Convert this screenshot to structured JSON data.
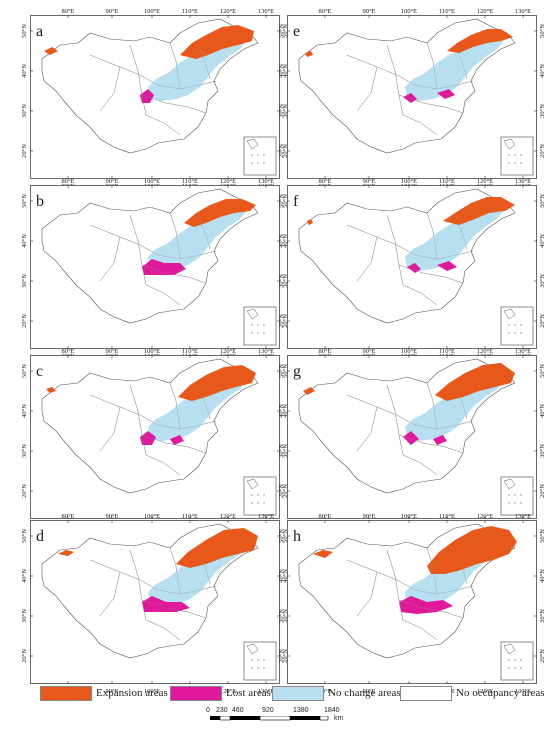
{
  "panels": [
    {
      "id": "a"
    },
    {
      "id": "b"
    },
    {
      "id": "c"
    },
    {
      "id": "d"
    },
    {
      "id": "e"
    },
    {
      "id": "f"
    },
    {
      "id": "g"
    },
    {
      "id": "h"
    }
  ],
  "axes": {
    "lon_ticks": [
      "80°E",
      "90°E",
      "100°E",
      "110°E",
      "120°E",
      "130°E"
    ],
    "lat_ticks": [
      "50°N",
      "40°N",
      "30°N",
      "20°N"
    ]
  },
  "legend": [
    {
      "label": "Expansion areas",
      "color": "#e8581a"
    },
    {
      "label": "Lost areas",
      "color": "#e0199a"
    },
    {
      "label": "No change areas",
      "color": "#b7dff0"
    },
    {
      "label": "No occupancy areas",
      "color": "#ffffff"
    }
  ],
  "scale_bar": {
    "ticks": [
      "0",
      "230",
      "460",
      "920",
      "1380",
      "1840"
    ],
    "unit": "km"
  }
}
